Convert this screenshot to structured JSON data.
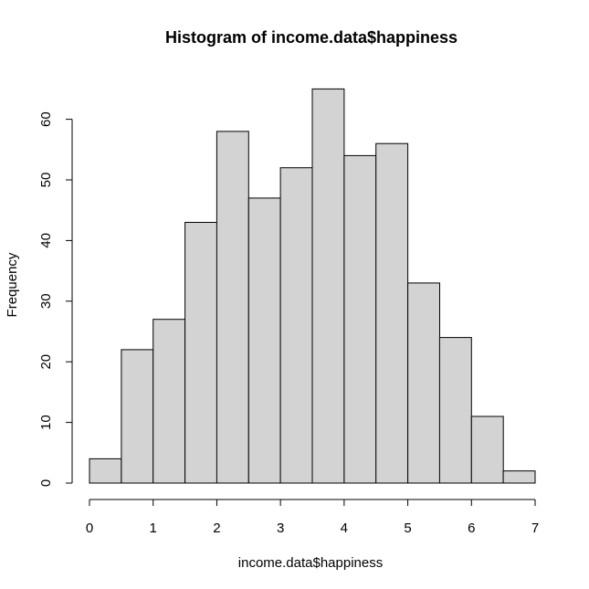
{
  "chart_data": {
    "type": "bar",
    "title": "Histogram of income.data$happiness",
    "xlabel": "income.data$happiness",
    "ylabel": "Frequency",
    "bin_edges": [
      0,
      0.5,
      1,
      1.5,
      2,
      2.5,
      3,
      3.5,
      4,
      4.5,
      5,
      5.5,
      6,
      6.5,
      7
    ],
    "values": [
      4,
      22,
      27,
      43,
      58,
      47,
      52,
      65,
      54,
      56,
      33,
      24,
      11,
      2
    ],
    "xlim": [
      0,
      7
    ],
    "ylim": [
      0,
      65
    ],
    "x_ticks": [
      0,
      1,
      2,
      3,
      4,
      5,
      6,
      7
    ],
    "y_ticks": [
      0,
      10,
      20,
      30,
      40,
      50,
      60
    ],
    "grid": false,
    "bar_color": "#d3d3d3",
    "edge_color": "#000000"
  }
}
